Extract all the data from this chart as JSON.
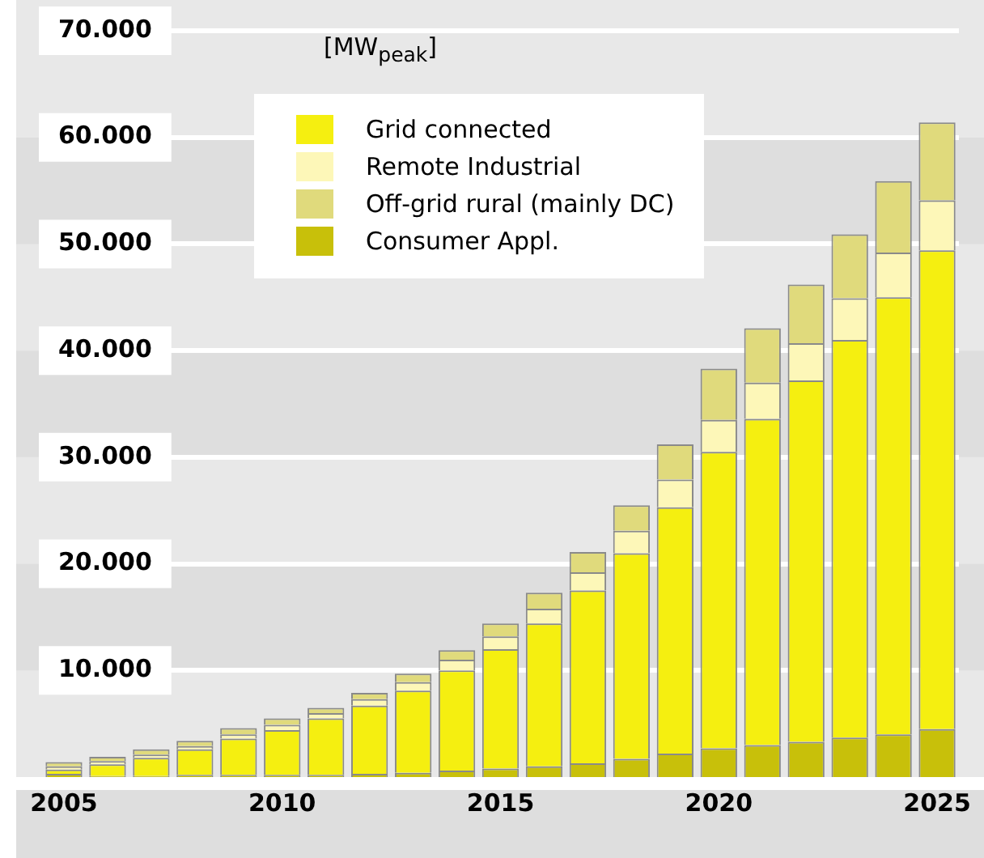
{
  "chart_data": {
    "type": "bar",
    "ylabel": "[MW$_{peak}$]",
    "stacked": true,
    "legend": "top left",
    "grid": "y",
    "categories": [
      "2005",
      null,
      null,
      null,
      null,
      "2010",
      null,
      null,
      null,
      null,
      "2015",
      null,
      null,
      null,
      null,
      "2020",
      null,
      null,
      null,
      null,
      "2025"
    ],
    "ylim": [
      0,
      70000
    ],
    "yticks": [
      {
        "value": 10000,
        "label": "10.000"
      },
      {
        "value": 20000,
        "label": "20.000"
      },
      {
        "value": 30000,
        "label": "30.000"
      },
      {
        "value": 40000,
        "label": "40.000"
      },
      {
        "value": 50000,
        "label": "50.000"
      },
      {
        "value": 60000,
        "label": "60.000"
      },
      {
        "value": 70000,
        "label": "70.000"
      }
    ],
    "series": [
      {
        "name": "Consumer Appl.",
        "color": "#c8c00a",
        "values": [
          300,
          100,
          100,
          200,
          200,
          200,
          200,
          300,
          400,
          600,
          800,
          1000,
          1300,
          1700,
          2200,
          2700,
          3000,
          3300,
          3700,
          4000,
          4500
        ]
      },
      {
        "name": "Grid connected",
        "color": "#f5ef10",
        "values": [
          400,
          1100,
          1700,
          2400,
          3400,
          4200,
          5300,
          6400,
          7700,
          9400,
          11200,
          13400,
          16200,
          19300,
          23100,
          27800,
          30600,
          33900,
          37300,
          41000,
          44900
        ]
      },
      {
        "name": "Remote Industrial",
        "color": "#fdf7b8",
        "values": [
          300,
          300,
          300,
          300,
          400,
          500,
          500,
          600,
          800,
          1000,
          1200,
          1400,
          1700,
          2100,
          2600,
          3000,
          3400,
          3500,
          3900,
          4200,
          4700
        ]
      },
      {
        "name": "Off-grid rural (mainly DC)",
        "color": "#e0da7c",
        "values": [
          400,
          400,
          500,
          500,
          600,
          600,
          500,
          600,
          800,
          900,
          1200,
          1500,
          1900,
          2400,
          3300,
          4800,
          5100,
          5500,
          6000,
          6700,
          7300
        ]
      }
    ]
  }
}
